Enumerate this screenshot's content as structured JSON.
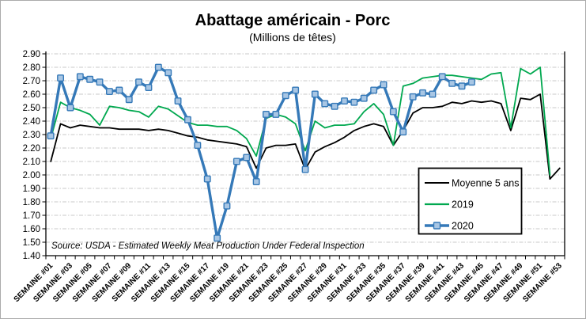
{
  "header": {
    "title": "Abattage américain - Porc",
    "subtitle": "(Millions de têtes)"
  },
  "footer": {
    "source": "Source: USDA - Estimated Weekly Meat Production Under Federal Inspection"
  },
  "legend": {
    "items": [
      {
        "label": "Moyenne 5 ans",
        "color": "#000000",
        "has_marker": false
      },
      {
        "label": "2019",
        "color": "#00A84F",
        "has_marker": false
      },
      {
        "label": "2020",
        "color": "#3579B8",
        "has_marker": true
      }
    ]
  },
  "chart_data": {
    "type": "line",
    "title": "Abattage américain - Porc",
    "subtitle": "(Millions de têtes)",
    "ylabel": "",
    "xlabel": "",
    "ylim": [
      1.4,
      2.9
    ],
    "y_tick_step": 0.1,
    "grid": "horizontal-dashed",
    "legend_position": "inside-right",
    "weeks_count": 53,
    "x_tick_labels": [
      "SEMAINE #01",
      "SEMAINE #03",
      "SEMAINE #05",
      "SEMAINE #07",
      "SEMAINE #09",
      "SEMAINE #11",
      "SEMAINE #13",
      "SEMAINE #15",
      "SEMAINE #17",
      "SEMAINE #19",
      "SEMAINE #21",
      "SEMAINE #23",
      "SEMAINE #25",
      "SEMAINE #27",
      "SEMAINE #29",
      "SEMAINE #31",
      "SEMAINE #33",
      "SEMAINE #35",
      "SEMAINE #37",
      "SEMAINE #39",
      "SEMAINE #41",
      "SEMAINE #43",
      "SEMAINE #45",
      "SEMAINE #47",
      "SEMAINE #49",
      "SEMAINE #51",
      "SEMAINE #53"
    ],
    "series": [
      {
        "name": "Moyenne 5 ans",
        "color": "#000000",
        "stroke_width": 1.8,
        "marker": false,
        "values": [
          2.1,
          2.38,
          2.35,
          2.37,
          2.36,
          2.35,
          2.35,
          2.34,
          2.34,
          2.34,
          2.33,
          2.34,
          2.33,
          2.31,
          2.29,
          2.28,
          2.26,
          2.25,
          2.24,
          2.23,
          2.21,
          2.05,
          2.2,
          2.22,
          2.22,
          2.23,
          2.04,
          2.17,
          2.21,
          2.24,
          2.28,
          2.33,
          2.36,
          2.38,
          2.36,
          2.22,
          2.33,
          2.46,
          2.5,
          2.5,
          2.51,
          2.54,
          2.53,
          2.55,
          2.54,
          2.55,
          2.53,
          2.33,
          2.57,
          2.56,
          2.6,
          1.97,
          2.05
        ]
      },
      {
        "name": "2019",
        "color": "#00A84F",
        "stroke_width": 1.8,
        "marker": false,
        "values": [
          2.27,
          2.54,
          2.5,
          2.48,
          2.45,
          2.37,
          2.51,
          2.5,
          2.48,
          2.47,
          2.43,
          2.51,
          2.49,
          2.44,
          2.39,
          2.37,
          2.37,
          2.36,
          2.36,
          2.33,
          2.27,
          2.14,
          2.42,
          2.45,
          2.43,
          2.38,
          2.18,
          2.4,
          2.35,
          2.37,
          2.37,
          2.38,
          2.47,
          2.53,
          2.45,
          2.22,
          2.66,
          2.68,
          2.72,
          2.73,
          2.74,
          2.74,
          2.73,
          2.72,
          2.71,
          2.75,
          2.76,
          2.35,
          2.79,
          2.75,
          2.8,
          2.0
        ]
      },
      {
        "name": "2020",
        "color": "#3579B8",
        "stroke_width": 3.4,
        "marker": true,
        "marker_fill": "#A8C6E4",
        "marker_size": 7.5,
        "values": [
          2.29,
          2.72,
          2.5,
          2.73,
          2.71,
          2.69,
          2.62,
          2.63,
          2.56,
          2.69,
          2.65,
          2.8,
          2.76,
          2.55,
          2.41,
          2.22,
          1.97,
          1.53,
          1.77,
          2.1,
          2.13,
          1.95,
          2.45,
          2.45,
          2.59,
          2.63,
          2.04,
          2.6,
          2.53,
          2.51,
          2.55,
          2.54,
          2.57,
          2.63,
          2.67,
          2.47,
          2.32,
          2.58,
          2.61,
          2.6,
          2.73,
          2.68,
          2.66,
          2.69
        ]
      }
    ]
  }
}
